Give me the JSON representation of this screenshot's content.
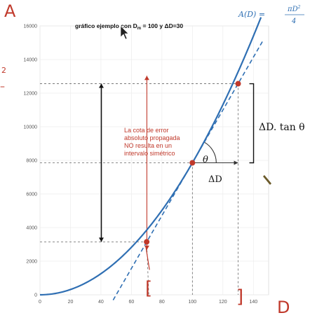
{
  "chart_data": {
    "type": "line",
    "title": "gráfico ejemplo con D",
    "title_subscript": "m",
    "title_rest": " = 100 y ΔD=30",
    "formula": {
      "lhs": "A(D) =",
      "num": "πD",
      "exp": "2",
      "den": "4"
    },
    "xlim": [
      0,
      150
    ],
    "ylim": [
      0,
      16000
    ],
    "xticks": [
      0,
      20,
      40,
      60,
      80,
      100,
      120,
      140
    ],
    "yticks": [
      0,
      2000,
      4000,
      6000,
      8000,
      10000,
      12000,
      14000,
      16000
    ],
    "series": [
      {
        "style": "solid",
        "color": "#2f6fb3",
        "function": "pi*D^2/4",
        "x_range": [
          0,
          145
        ]
      }
    ],
    "tangent": {
      "style": "dashed",
      "color": "#2f6fb3",
      "point_x": 100,
      "x_range": [
        48,
        146
      ]
    },
    "points": [
      {
        "x": 70,
        "y": 3150,
        "color": "#c0392b"
      },
      {
        "x": 100,
        "y": 7854,
        "color": "#c0392b"
      },
      {
        "x": 130,
        "y": 12560,
        "color": "#c0392b"
      }
    ],
    "annotation_lines": [
      "La cota de error",
      "absoluto propagada",
      "NO resulta en un",
      "intervalo simétrico"
    ],
    "labels": {
      "delta_d_tan": "ΔD. tan θ",
      "theta": "θ",
      "delta_d": "ΔD",
      "axis_x_hand": "D",
      "axis_y_hand": "A",
      "bracket_left": "[",
      "bracket_right": "]",
      "left_fragment": "2",
      "left_dash": "–"
    }
  }
}
